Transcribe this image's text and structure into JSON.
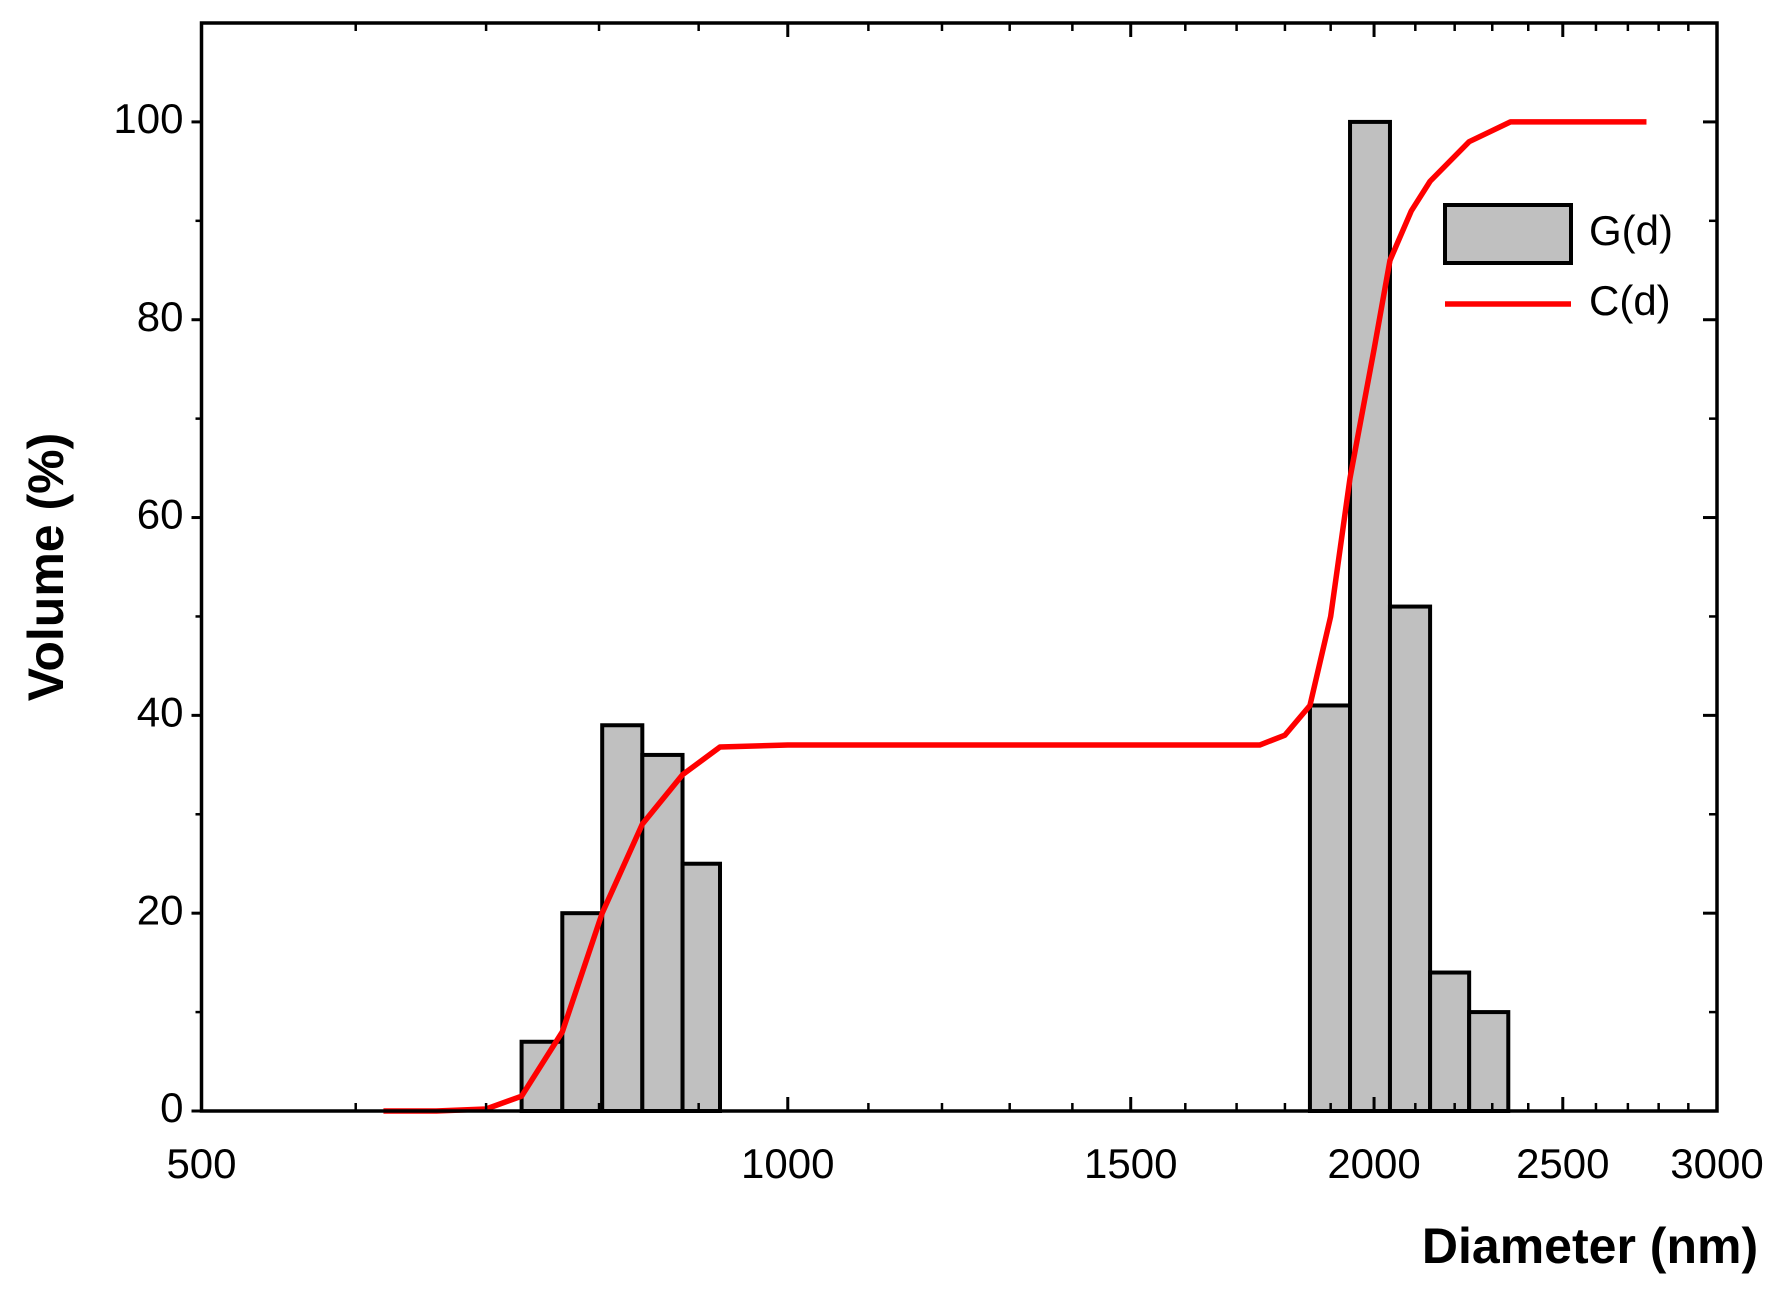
{
  "chart_data": {
    "type": "histogram",
    "xlabel": "Diameter (nm)",
    "ylabel": "Volume (%)",
    "x_scale": "log",
    "xlim": [
      500,
      3000
    ],
    "xticks": [
      500,
      1000,
      1500,
      2000,
      2500,
      3000
    ],
    "xminorticks": [
      600,
      700,
      800,
      900,
      1100,
      1200,
      1300,
      1400,
      1600,
      1700,
      1800,
      1900,
      2100,
      2200,
      2300,
      2400,
      2600,
      2700,
      2800,
      2900
    ],
    "ylim": [
      0,
      110
    ],
    "yticks": [
      0,
      20,
      40,
      60,
      80,
      100
    ],
    "yminorticks": [
      10,
      30,
      50,
      70,
      90
    ],
    "legend": "upper right",
    "bins": [
      730,
      766,
      803,
      842,
      883,
      923,
      1854,
      1944,
      2038,
      2137,
      2238,
      2344
    ],
    "series": [
      {
        "name": "G(d)",
        "type": "histogram",
        "color": "#c0c0c0",
        "values": [
          7,
          20,
          39,
          36,
          25,
          null,
          41,
          100,
          51,
          14,
          10
        ]
      },
      {
        "name": "C(d)",
        "type": "line",
        "color": "#ff0000",
        "x": [
          620,
          660,
          700,
          730,
          766,
          803,
          842,
          883,
          923,
          1000,
          1200,
          1500,
          1747,
          1800,
          1854,
          1900,
          1944,
          2000,
          2038,
          2090,
          2137,
          2238,
          2350,
          2500,
          2760
        ],
        "values": [
          0,
          0,
          0.2,
          1.5,
          8,
          20,
          29,
          34,
          36.8,
          37,
          37,
          37,
          37,
          38,
          41,
          50,
          64,
          77,
          86,
          91,
          94,
          98,
          100,
          100,
          100
        ]
      }
    ]
  }
}
